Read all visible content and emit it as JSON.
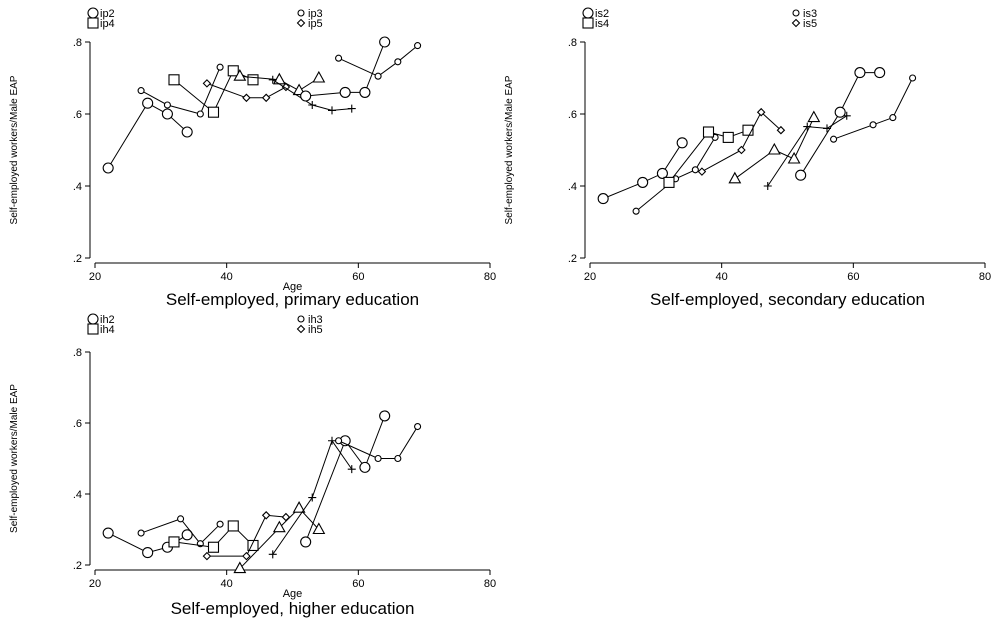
{
  "chart_data": [
    {
      "type": "line",
      "title": "Self-employed, primary education",
      "xlabel": "Age",
      "ylabel": "Self-employed workers/Male EAP",
      "xlim": [
        20,
        80
      ],
      "ylim": [
        0.2,
        0.8
      ],
      "xticks": [
        "20",
        "40",
        "60",
        "80"
      ],
      "yticks": [
        ".2",
        ".4",
        ".6",
        ".8"
      ],
      "legend_position": "top",
      "series": [
        {
          "name": "ip2",
          "marker": "circle-large",
          "points": [
            [
              22,
              0.45
            ],
            [
              28,
              0.63
            ],
            [
              31,
              0.6
            ],
            [
              34,
              0.55
            ]
          ]
        },
        {
          "name": "ip3",
          "marker": "circle-small",
          "points": [
            [
              27,
              0.665
            ],
            [
              31,
              0.625
            ],
            [
              36,
              0.6
            ],
            [
              39,
              0.73
            ]
          ]
        },
        {
          "name": "ip4",
          "marker": "square",
          "points": [
            [
              32,
              0.695
            ],
            [
              38,
              0.605
            ],
            [
              41,
              0.72
            ],
            [
              44,
              0.695
            ]
          ]
        },
        {
          "name": "ip5",
          "marker": "diamond",
          "points": [
            [
              37,
              0.685
            ],
            [
              43,
              0.645
            ],
            [
              46,
              0.645
            ],
            [
              49,
              0.675
            ]
          ]
        },
        {
          "name": "",
          "marker": "triangle",
          "points": [
            [
              42,
              0.705
            ],
            [
              48,
              0.695
            ],
            [
              51,
              0.665
            ],
            [
              54,
              0.7
            ]
          ]
        },
        {
          "name": "",
          "marker": "plus",
          "points": [
            [
              47,
              0.695
            ],
            [
              53,
              0.625
            ],
            [
              56,
              0.61
            ],
            [
              59,
              0.615
            ]
          ]
        },
        {
          "name": "",
          "marker": "circle-large",
          "points": [
            [
              52,
              0.65
            ],
            [
              58,
              0.66
            ],
            [
              61,
              0.66
            ],
            [
              64,
              0.8
            ]
          ]
        },
        {
          "name": "",
          "marker": "circle-small",
          "points": [
            [
              57,
              0.755
            ],
            [
              63,
              0.705
            ],
            [
              66,
              0.745
            ],
            [
              69,
              0.79
            ]
          ]
        }
      ]
    },
    {
      "type": "line",
      "title": "Self-employed, secondary education",
      "xlabel": "",
      "ylabel": "Self-employed workers/Male EAP",
      "xlim": [
        20,
        80
      ],
      "ylim": [
        0.2,
        0.8
      ],
      "xticks": [
        "20",
        "40",
        "60",
        "80"
      ],
      "yticks": [
        ".2",
        ".4",
        ".6",
        ".8"
      ],
      "legend_position": "top",
      "series": [
        {
          "name": "is2",
          "marker": "circle-large",
          "points": [
            [
              22,
              0.365
            ],
            [
              28,
              0.41
            ],
            [
              31,
              0.435
            ],
            [
              34,
              0.52
            ]
          ]
        },
        {
          "name": "is3",
          "marker": "circle-small",
          "points": [
            [
              27,
              0.33
            ],
            [
              33,
              0.42
            ],
            [
              36,
              0.445
            ],
            [
              39,
              0.535
            ]
          ]
        },
        {
          "name": "is4",
          "marker": "square",
          "points": [
            [
              32,
              0.41
            ],
            [
              38,
              0.55
            ],
            [
              41,
              0.535
            ],
            [
              44,
              0.555
            ]
          ]
        },
        {
          "name": "is5",
          "marker": "diamond",
          "points": [
            [
              37,
              0.44
            ],
            [
              43,
              0.5
            ],
            [
              46,
              0.605
            ],
            [
              49,
              0.555
            ]
          ]
        },
        {
          "name": "",
          "marker": "triangle",
          "points": [
            [
              42,
              0.42
            ],
            [
              48,
              0.5
            ],
            [
              51,
              0.475
            ],
            [
              54,
              0.59
            ]
          ]
        },
        {
          "name": "",
          "marker": "plus",
          "points": [
            [
              47,
              0.4
            ],
            [
              53,
              0.565
            ],
            [
              56,
              0.56
            ],
            [
              59,
              0.595
            ]
          ]
        },
        {
          "name": "",
          "marker": "circle-large",
          "points": [
            [
              52,
              0.43
            ],
            [
              58,
              0.605
            ],
            [
              61,
              0.715
            ],
            [
              64,
              0.715
            ]
          ]
        },
        {
          "name": "",
          "marker": "circle-small",
          "points": [
            [
              57,
              0.53
            ],
            [
              63,
              0.57
            ],
            [
              66,
              0.59
            ],
            [
              69,
              0.7
            ]
          ]
        }
      ]
    },
    {
      "type": "line",
      "title": "Self-employed, higher education",
      "xlabel": "Age",
      "ylabel": "Self-employed workers/Male EAP",
      "xlim": [
        20,
        80
      ],
      "ylim": [
        0.2,
        0.8
      ],
      "xticks": [
        "20",
        "40",
        "60",
        "80"
      ],
      "yticks": [
        ".2",
        ".4",
        ".6",
        ".8"
      ],
      "legend_position": "top",
      "series": [
        {
          "name": "ih2",
          "marker": "circle-large",
          "points": [
            [
              22,
              0.29
            ],
            [
              28,
              0.235
            ],
            [
              31,
              0.25
            ],
            [
              34,
              0.285
            ]
          ]
        },
        {
          "name": "ih3",
          "marker": "circle-small",
          "points": [
            [
              27,
              0.29
            ],
            [
              33,
              0.33
            ],
            [
              36,
              0.26
            ],
            [
              39,
              0.315
            ]
          ]
        },
        {
          "name": "ih4",
          "marker": "square",
          "points": [
            [
              32,
              0.265
            ],
            [
              38,
              0.25
            ],
            [
              41,
              0.31
            ],
            [
              44,
              0.255
            ]
          ]
        },
        {
          "name": "ih5",
          "marker": "diamond",
          "points": [
            [
              37,
              0.225
            ],
            [
              43,
              0.225
            ],
            [
              46,
              0.34
            ],
            [
              49,
              0.335
            ]
          ]
        },
        {
          "name": "",
          "marker": "triangle",
          "points": [
            [
              42,
              0.19
            ],
            [
              48,
              0.305
            ],
            [
              51,
              0.36
            ],
            [
              54,
              0.3
            ]
          ]
        },
        {
          "name": "",
          "marker": "plus",
          "points": [
            [
              47,
              0.23
            ],
            [
              53,
              0.39
            ],
            [
              56,
              0.55
            ],
            [
              59,
              0.47
            ]
          ]
        },
        {
          "name": "",
          "marker": "circle-large",
          "points": [
            [
              52,
              0.265
            ],
            [
              58,
              0.55
            ],
            [
              61,
              0.475
            ],
            [
              64,
              0.62
            ]
          ]
        },
        {
          "name": "",
          "marker": "circle-small",
          "points": [
            [
              57,
              0.55
            ],
            [
              63,
              0.5
            ],
            [
              66,
              0.5
            ],
            [
              69,
              0.59
            ]
          ]
        }
      ]
    }
  ]
}
